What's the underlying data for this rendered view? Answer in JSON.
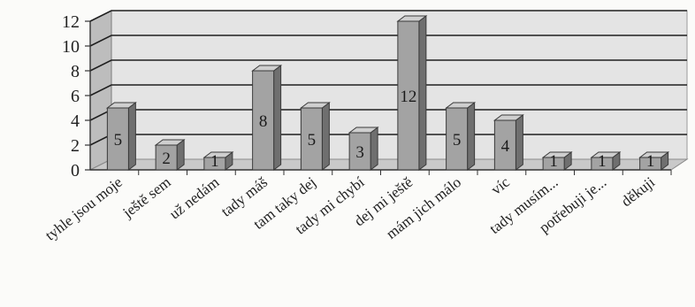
{
  "chart_data": {
    "type": "bar",
    "categories": [
      "tyhle jsou moje",
      "ještě sem",
      "už nedám",
      "tady máš",
      "tam taky dej",
      "tady mi chybí",
      "dej mi ještě",
      "mám jich málo",
      "víc",
      "tady musím...",
      "potřebuji je...",
      "děkuji"
    ],
    "values": [
      5,
      2,
      1,
      8,
      5,
      3,
      12,
      5,
      4,
      1,
      1,
      1
    ],
    "data_labels": [
      "5",
      "2",
      "1",
      "8",
      "5",
      "3",
      "12",
      "5",
      "4",
      "1",
      "1",
      "1"
    ],
    "yticks": [
      "0",
      "2",
      "4",
      "6",
      "8",
      "10",
      "12"
    ],
    "ylim": [
      0,
      12
    ],
    "grid": true,
    "style": "3d-column",
    "colors": {
      "bar_front": "#a3a3a3",
      "bar_side": "#6f6f6f",
      "bar_top": "#cfcfcf",
      "wall": "#e4e4e4",
      "floor": "#c9c9c9",
      "grid": "#1f1f1f"
    }
  }
}
